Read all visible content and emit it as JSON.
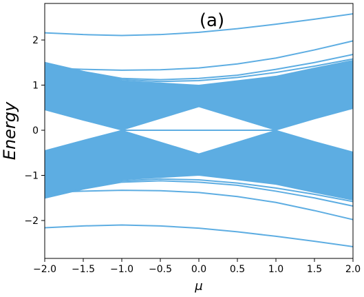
{
  "chart_data": {
    "type": "line",
    "title": "(a)",
    "x_label": "μ",
    "y_label": "Energy",
    "x": [
      -2,
      -1.5,
      -1,
      -0.5,
      0,
      0.5,
      1,
      1.5,
      2
    ],
    "color": "#5dade2",
    "series": [
      {
        "values": [
          2.16,
          2.12,
          2.1,
          2.12,
          2.17,
          2.25,
          2.35,
          2.46,
          2.58
        ]
      },
      {
        "values": [
          1.38,
          1.35,
          1.33,
          1.34,
          1.38,
          1.47,
          1.6,
          1.78,
          1.98
        ]
      },
      {
        "values": [
          1.5,
          1.3,
          1.15,
          1.12,
          1.15,
          1.22,
          1.35,
          1.5,
          1.68
        ]
      },
      {
        "values": [
          1.5,
          1.3,
          1.12,
          1.08,
          1.1,
          1.17,
          1.28,
          1.42,
          1.58
        ]
      },
      {
        "values": [
          null,
          null,
          0,
          0,
          0,
          0,
          0,
          null,
          null
        ]
      },
      {
        "values": [
          -1.5,
          -1.3,
          -1.12,
          -1.08,
          -1.1,
          -1.17,
          -1.28,
          -1.42,
          -1.58
        ]
      },
      {
        "values": [
          -1.5,
          -1.3,
          -1.15,
          -1.12,
          -1.15,
          -1.22,
          -1.35,
          -1.5,
          -1.68
        ]
      },
      {
        "values": [
          -1.38,
          -1.35,
          -1.33,
          -1.34,
          -1.38,
          -1.47,
          -1.6,
          -1.78,
          -1.98
        ]
      },
      {
        "values": [
          -2.16,
          -2.12,
          -2.1,
          -2.12,
          -2.17,
          -2.25,
          -2.35,
          -2.46,
          -2.58
        ]
      }
    ],
    "bands": [
      {
        "lower": [
          0.45,
          0.22,
          0,
          0.26,
          0.52,
          0.26,
          0,
          0.25,
          0.48
        ],
        "upper": [
          1.5,
          1.3,
          1.1,
          1.05,
          1.0,
          1.1,
          1.2,
          1.38,
          1.55
        ]
      },
      {
        "lower": [
          -1.5,
          -1.3,
          -1.1,
          -1.05,
          -1.0,
          -1.1,
          -1.2,
          -1.38,
          -1.55
        ],
        "upper": [
          -0.45,
          -0.22,
          0,
          -0.26,
          -0.52,
          -0.26,
          0,
          -0.25,
          -0.48
        ]
      }
    ],
    "xlim": [
      -2,
      2
    ],
    "ylim": [
      -2.84,
      2.81
    ],
    "xticks": [
      {
        "value": -2,
        "label": "−2.0"
      },
      {
        "value": -1.5,
        "label": "−1.5"
      },
      {
        "value": -1,
        "label": "−1.0"
      },
      {
        "value": -0.5,
        "label": "−0.5"
      },
      {
        "value": 0,
        "label": "0.0"
      },
      {
        "value": 0.5,
        "label": "0.5"
      },
      {
        "value": 1,
        "label": "1.0"
      },
      {
        "value": 1.5,
        "label": "1.5"
      },
      {
        "value": 2,
        "label": "2.0"
      }
    ],
    "yticks": [
      {
        "value": -2,
        "label": "−2"
      },
      {
        "value": -1,
        "label": "−1"
      },
      0,
      1,
      2
    ]
  }
}
